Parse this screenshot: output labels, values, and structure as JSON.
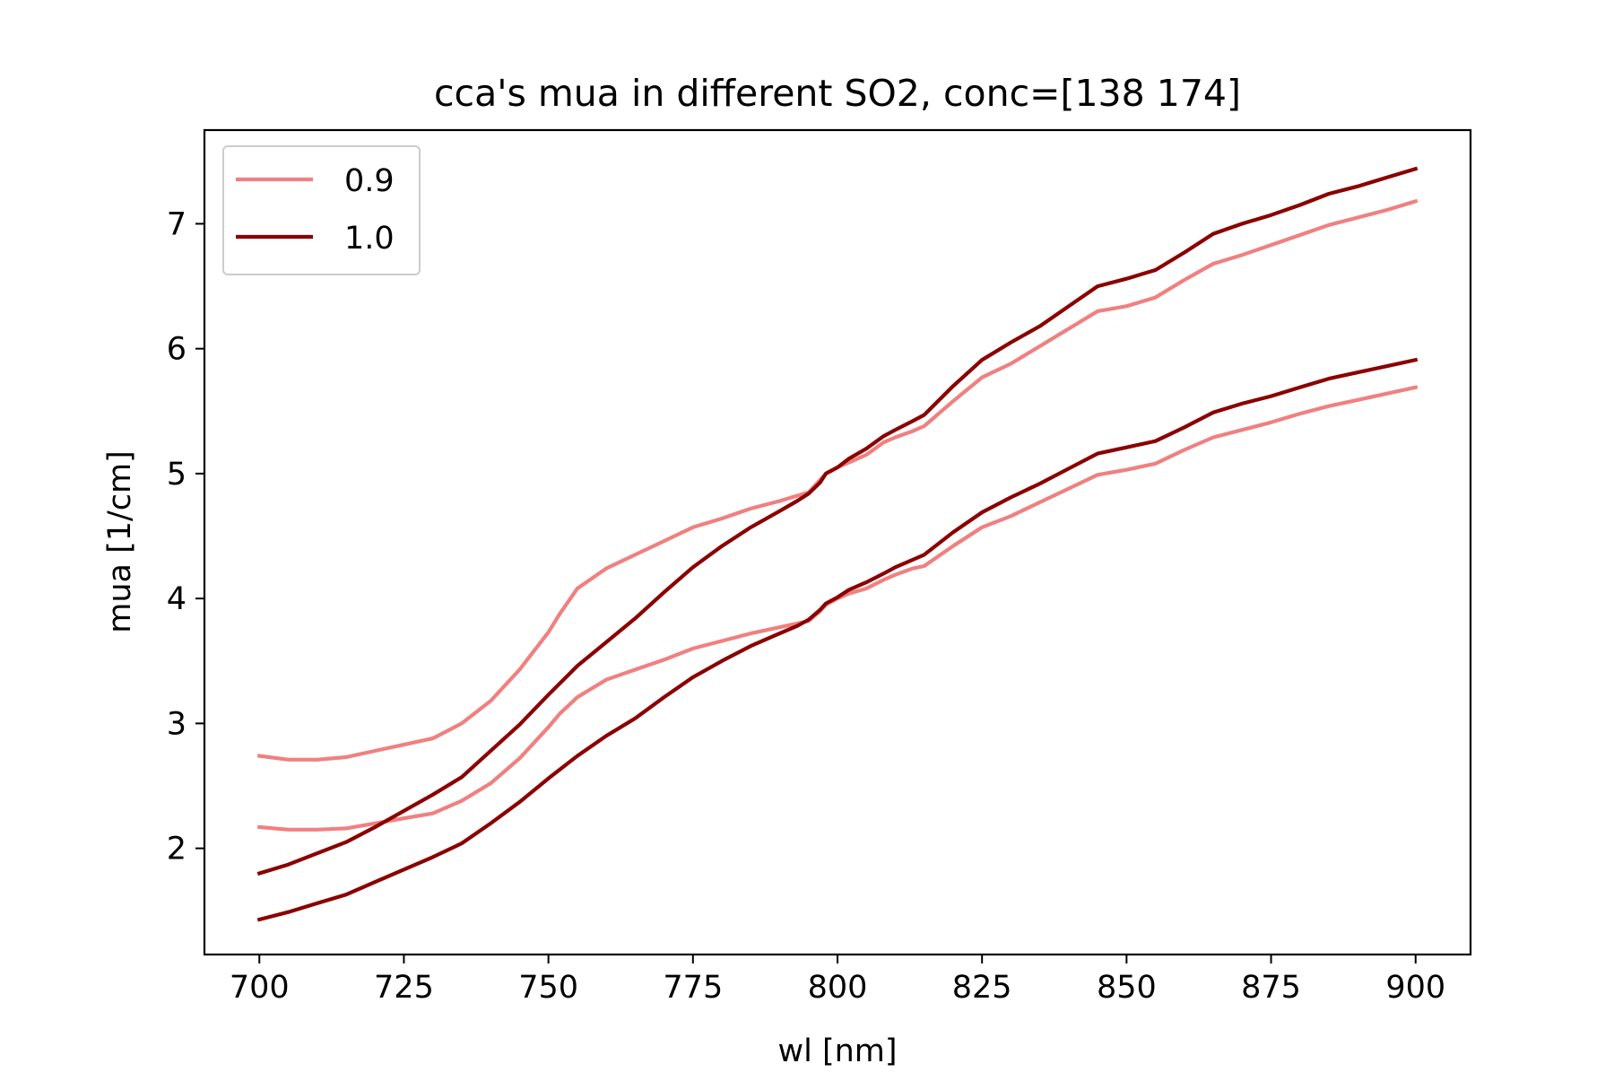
{
  "chart_data": {
    "type": "line",
    "title": "cca's mua in different SO2, conc=[138 174]",
    "xlabel": "wl [nm]",
    "ylabel": "mua [1/cm]",
    "xlim": [
      690.5,
      909.5
    ],
    "ylim": [
      1.15,
      7.75
    ],
    "xticks": [
      "700",
      "725",
      "750",
      "775",
      "800",
      "825",
      "850",
      "875",
      "900"
    ],
    "yticks": [
      "2",
      "3",
      "4",
      "5",
      "6",
      "7"
    ],
    "grid": false,
    "legend": {
      "placement": "upper-left",
      "entries": [
        {
          "label": "0.9",
          "color": "#F08080"
        },
        {
          "label": "1.0",
          "color": "#8B0000"
        }
      ]
    },
    "series": [
      {
        "legend_group": "0.9",
        "color": "#F08080",
        "x": [
          700,
          705,
          710,
          715,
          720,
          725,
          730,
          735,
          740,
          745,
          750,
          752,
          755,
          760,
          765,
          770,
          775,
          780,
          785,
          790,
          795,
          797,
          798,
          800,
          802,
          805,
          808,
          810,
          813,
          815,
          820,
          825,
          830,
          835,
          840,
          845,
          850,
          855,
          860,
          865,
          870,
          875,
          880,
          885,
          890,
          895,
          900
        ],
        "y": [
          2.74,
          2.71,
          2.71,
          2.73,
          2.78,
          2.83,
          2.88,
          3.0,
          3.18,
          3.43,
          3.73,
          3.88,
          4.08,
          4.24,
          4.35,
          4.46,
          4.57,
          4.64,
          4.72,
          4.78,
          4.85,
          4.95,
          5.0,
          5.05,
          5.09,
          5.15,
          5.25,
          5.29,
          5.34,
          5.38,
          5.58,
          5.77,
          5.88,
          6.02,
          6.16,
          6.3,
          6.34,
          6.41,
          6.55,
          6.68,
          6.75,
          6.83,
          6.91,
          6.99,
          7.05,
          7.11,
          7.18
        ]
      },
      {
        "legend_group": "0.9",
        "color": "#F08080",
        "x": [
          700,
          705,
          710,
          715,
          720,
          725,
          730,
          735,
          740,
          745,
          750,
          752,
          755,
          760,
          765,
          770,
          775,
          780,
          785,
          790,
          795,
          797,
          798,
          800,
          802,
          805,
          808,
          810,
          813,
          815,
          820,
          825,
          830,
          835,
          840,
          845,
          850,
          855,
          860,
          865,
          870,
          875,
          880,
          885,
          890,
          895,
          900
        ],
        "y": [
          2.17,
          2.15,
          2.15,
          2.16,
          2.2,
          2.24,
          2.28,
          2.38,
          2.52,
          2.72,
          2.97,
          3.08,
          3.21,
          3.35,
          3.43,
          3.51,
          3.6,
          3.66,
          3.72,
          3.77,
          3.82,
          3.9,
          3.95,
          4.0,
          4.04,
          4.08,
          4.15,
          4.19,
          4.24,
          4.26,
          4.42,
          4.57,
          4.66,
          4.77,
          4.88,
          4.99,
          5.03,
          5.08,
          5.19,
          5.29,
          5.35,
          5.41,
          5.48,
          5.54,
          5.59,
          5.64,
          5.69
        ]
      },
      {
        "legend_group": "1.0",
        "color": "#8B0000",
        "x": [
          700,
          705,
          710,
          715,
          720,
          725,
          730,
          735,
          740,
          745,
          750,
          755,
          760,
          765,
          770,
          775,
          780,
          785,
          790,
          793,
          795,
          797,
          798,
          800,
          802,
          805,
          808,
          810,
          813,
          815,
          820,
          825,
          830,
          835,
          840,
          845,
          850,
          855,
          860,
          865,
          870,
          875,
          880,
          885,
          890,
          895,
          900
        ],
        "y": [
          1.8,
          1.87,
          1.96,
          2.05,
          2.17,
          2.3,
          2.43,
          2.57,
          2.78,
          2.99,
          3.23,
          3.46,
          3.65,
          3.84,
          4.05,
          4.25,
          4.42,
          4.57,
          4.7,
          4.78,
          4.84,
          4.93,
          5.0,
          5.05,
          5.12,
          5.2,
          5.3,
          5.35,
          5.42,
          5.47,
          5.7,
          5.91,
          6.05,
          6.18,
          6.34,
          6.5,
          6.56,
          6.63,
          6.77,
          6.92,
          7.0,
          7.07,
          7.15,
          7.24,
          7.3,
          7.37,
          7.44
        ]
      },
      {
        "legend_group": "1.0",
        "color": "#8B0000",
        "x": [
          700,
          705,
          710,
          715,
          720,
          725,
          730,
          735,
          740,
          745,
          750,
          755,
          760,
          765,
          770,
          775,
          780,
          785,
          790,
          793,
          795,
          797,
          798,
          800,
          802,
          805,
          808,
          810,
          813,
          815,
          820,
          825,
          830,
          835,
          840,
          845,
          850,
          855,
          860,
          865,
          870,
          875,
          880,
          885,
          890,
          895,
          900
        ],
        "y": [
          1.43,
          1.49,
          1.56,
          1.63,
          1.73,
          1.83,
          1.93,
          2.04,
          2.2,
          2.37,
          2.56,
          2.74,
          2.9,
          3.04,
          3.21,
          3.37,
          3.5,
          3.62,
          3.72,
          3.78,
          3.83,
          3.91,
          3.96,
          4.01,
          4.07,
          4.13,
          4.2,
          4.25,
          4.31,
          4.35,
          4.53,
          4.69,
          4.81,
          4.92,
          5.04,
          5.16,
          5.21,
          5.26,
          5.37,
          5.49,
          5.56,
          5.62,
          5.69,
          5.76,
          5.81,
          5.86,
          5.91
        ]
      }
    ]
  }
}
